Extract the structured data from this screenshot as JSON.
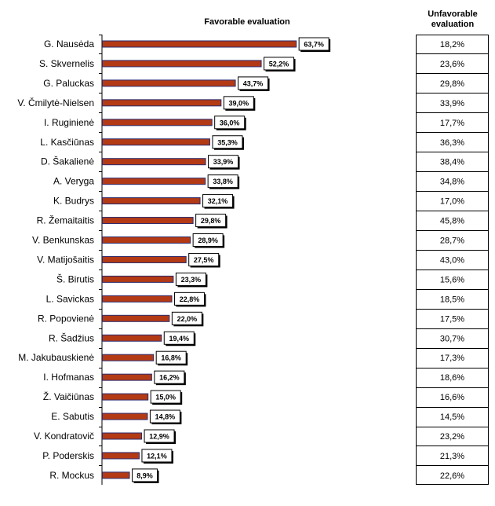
{
  "chart_data": {
    "type": "bar",
    "orientation": "horizontal",
    "title": "Favorable evaluation",
    "categories": [
      "G. Nausėda",
      "S. Skvernelis",
      "G. Paluckas",
      "V. Čmilytė-Nielsen",
      "I. Ruginienė",
      "L. Kasčiūnas",
      "D. Šakalienė",
      "A. Veryga",
      "K. Budrys",
      "R. Žemaitaitis",
      "V. Benkunskas",
      "V. Matijošaitis",
      "Š. Birutis",
      "L. Savickas",
      "R. Popovienė",
      "R. Šadžius",
      "M. Jakubauskienė",
      "I. Hofmanas",
      "Ž. Vaičiūnas",
      "E. Sabutis",
      "V. Kondratovič",
      "P. Poderskis",
      "R. Mockus"
    ],
    "values": [
      63.7,
      52.2,
      43.7,
      39.0,
      36.0,
      35.3,
      33.9,
      33.8,
      32.1,
      29.8,
      28.9,
      27.5,
      23.3,
      22.8,
      22.0,
      19.4,
      16.8,
      16.2,
      15.0,
      14.8,
      12.9,
      12.1,
      8.9
    ],
    "value_labels": [
      "63,7%",
      "52,2%",
      "43,7%",
      "39,0%",
      "36,0%",
      "35,3%",
      "33,9%",
      "33,8%",
      "32,1%",
      "29,8%",
      "28,9%",
      "27,5%",
      "23,3%",
      "22,8%",
      "22,0%",
      "19,4%",
      "16,8%",
      "16,2%",
      "15,0%",
      "14,8%",
      "12,9%",
      "12,1%",
      "8,9%"
    ],
    "bar_color": "#B33A14",
    "bar_border": "#2B2B6E",
    "unfavorable_title": "Unfavorable evaluation",
    "unfavorable_values": [
      18.2,
      23.6,
      29.8,
      33.9,
      17.7,
      36.3,
      38.4,
      34.8,
      17.0,
      45.8,
      28.7,
      43.0,
      15.6,
      18.5,
      17.5,
      30.7,
      17.3,
      18.6,
      16.6,
      14.5,
      23.2,
      21.3,
      22.6
    ],
    "unfavorable_labels": [
      "18,2%",
      "23,6%",
      "29,8%",
      "33,9%",
      "17,7%",
      "36,3%",
      "38,4%",
      "34,8%",
      "17,0%",
      "45,8%",
      "28,7%",
      "43,0%",
      "15,6%",
      "18,5%",
      "17,5%",
      "30,7%",
      "17,3%",
      "18,6%",
      "16,6%",
      "14,5%",
      "23,2%",
      "21,3%",
      "22,6%"
    ],
    "xlim": [
      0,
      100
    ],
    "grid": false
  }
}
